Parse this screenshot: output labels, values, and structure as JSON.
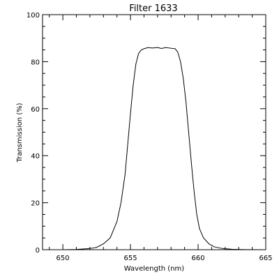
{
  "chart_data": {
    "type": "line",
    "title": "Filter 1633",
    "xlabel": "Wavelength (nm)",
    "ylabel": "Transmission (%)",
    "xlim": [
      648.5,
      665
    ],
    "ylim": [
      0,
      100
    ],
    "x_major_ticks": [
      650,
      655,
      660,
      665
    ],
    "x_tick_labels": [
      "650",
      "655",
      "660",
      "665"
    ],
    "x_minor_step": 1,
    "y_major_ticks": [
      0,
      20,
      40,
      60,
      80,
      100
    ],
    "y_tick_labels": [
      "0",
      "20",
      "40",
      "60",
      "80",
      "100"
    ],
    "y_minor_step": 5,
    "grid": false,
    "series": [
      {
        "x": [
          650.0,
          651.0,
          652.0,
          652.5,
          653.0,
          653.5,
          654.0,
          654.3,
          654.6,
          654.8,
          655.0,
          655.2,
          655.4,
          655.6,
          655.8,
          656.0,
          656.3,
          656.6,
          657.0,
          657.3,
          657.6,
          658.0,
          658.3,
          658.5,
          658.7,
          658.9,
          659.1,
          659.3,
          659.5,
          659.7,
          659.9,
          660.1,
          660.4,
          660.8,
          661.2,
          661.8,
          662.5,
          663.5,
          665.0
        ],
        "y": [
          0.0,
          0.1,
          0.5,
          1.0,
          2.5,
          5.0,
          12.0,
          20.0,
          32.0,
          45.0,
          58.0,
          70.0,
          79.0,
          83.5,
          85.0,
          85.5,
          86.0,
          85.8,
          86.0,
          85.6,
          86.0,
          85.7,
          85.5,
          84.0,
          80.0,
          73.0,
          63.0,
          50.0,
          37.0,
          25.0,
          15.0,
          9.0,
          5.0,
          2.5,
          1.2,
          0.5,
          0.2,
          0.05,
          0.0
        ]
      }
    ]
  }
}
